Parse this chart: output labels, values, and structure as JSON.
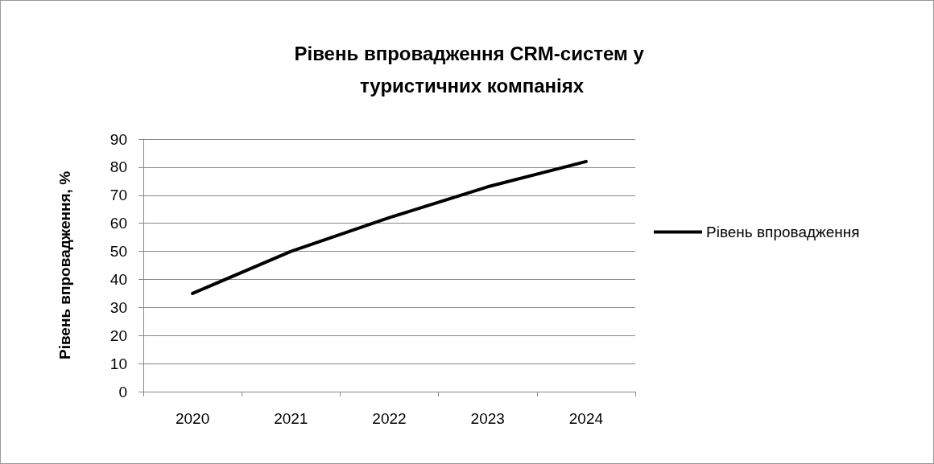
{
  "chart_data": {
    "type": "line",
    "title": "Рівень впровадження CRM-систем у туристичних компаніях",
    "ylabel": "Рівень впровадження, %",
    "categories": [
      "2020",
      "2021",
      "2022",
      "2023",
      "2024"
    ],
    "series": [
      {
        "name": "Рівень впровадження",
        "color": "#000000",
        "values": [
          35,
          50,
          62,
          73,
          82
        ]
      }
    ],
    "ylim": [
      0,
      90
    ],
    "yticks": [
      0,
      10,
      20,
      30,
      40,
      50,
      60,
      70,
      80,
      90
    ],
    "grid": "y",
    "legend": "right",
    "marker": "none",
    "line_style": "solid"
  }
}
